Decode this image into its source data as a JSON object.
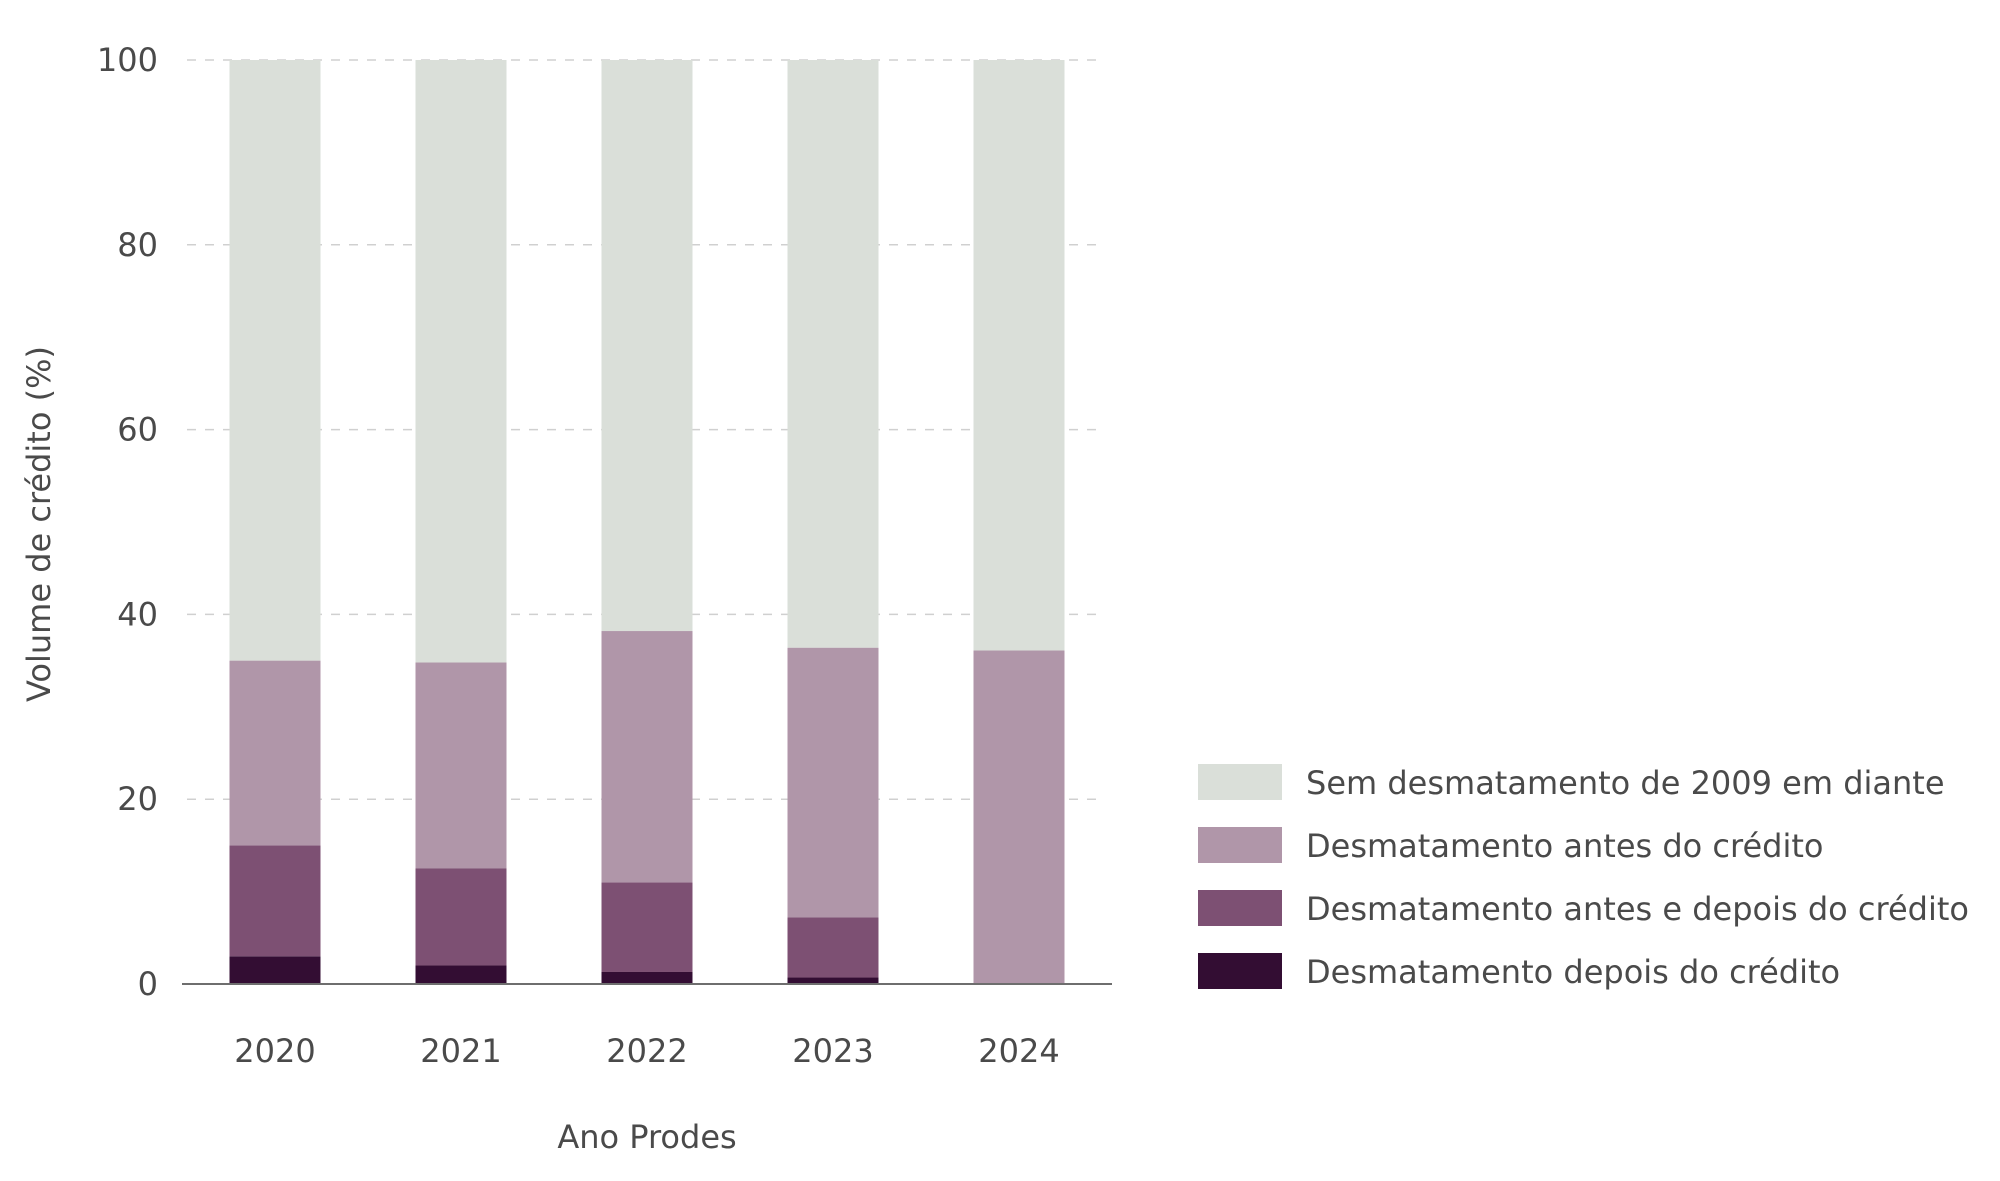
{
  "chart_data": {
    "type": "bar",
    "stacked": true,
    "categories": [
      "2020",
      "2021",
      "2022",
      "2023",
      "2024"
    ],
    "xlabel": "Ano Prodes",
    "ylabel": "Volume de crédito (%)",
    "ylim": [
      0,
      100
    ],
    "yticks": [
      0,
      20,
      40,
      60,
      80,
      100
    ],
    "grid": "horizontal dashed",
    "legend_position": "right",
    "series": [
      {
        "name": "Desmatamento depois do crédito",
        "color": "#330d33",
        "values": [
          3.0,
          2.0,
          1.3,
          0.7,
          0.0
        ]
      },
      {
        "name": "Desmatamento antes e depois do crédito",
        "color": "#7d5073",
        "values": [
          12.0,
          10.5,
          9.7,
          6.5,
          0.0
        ]
      },
      {
        "name": "Desmatamento antes do crédito",
        "color": "#b096a9",
        "values": [
          20.0,
          22.3,
          27.2,
          29.2,
          36.1
        ]
      },
      {
        "name": "Sem desmatamento de 2009 em diante",
        "color": "#dadfd9",
        "values": [
          65.0,
          65.2,
          61.8,
          63.6,
          63.9
        ]
      }
    ],
    "legend_order": [
      "Sem desmatamento de 2009 em diante",
      "Desmatamento antes do crédito",
      "Desmatamento antes e depois do crédito",
      "Desmatamento depois do crédito"
    ]
  }
}
